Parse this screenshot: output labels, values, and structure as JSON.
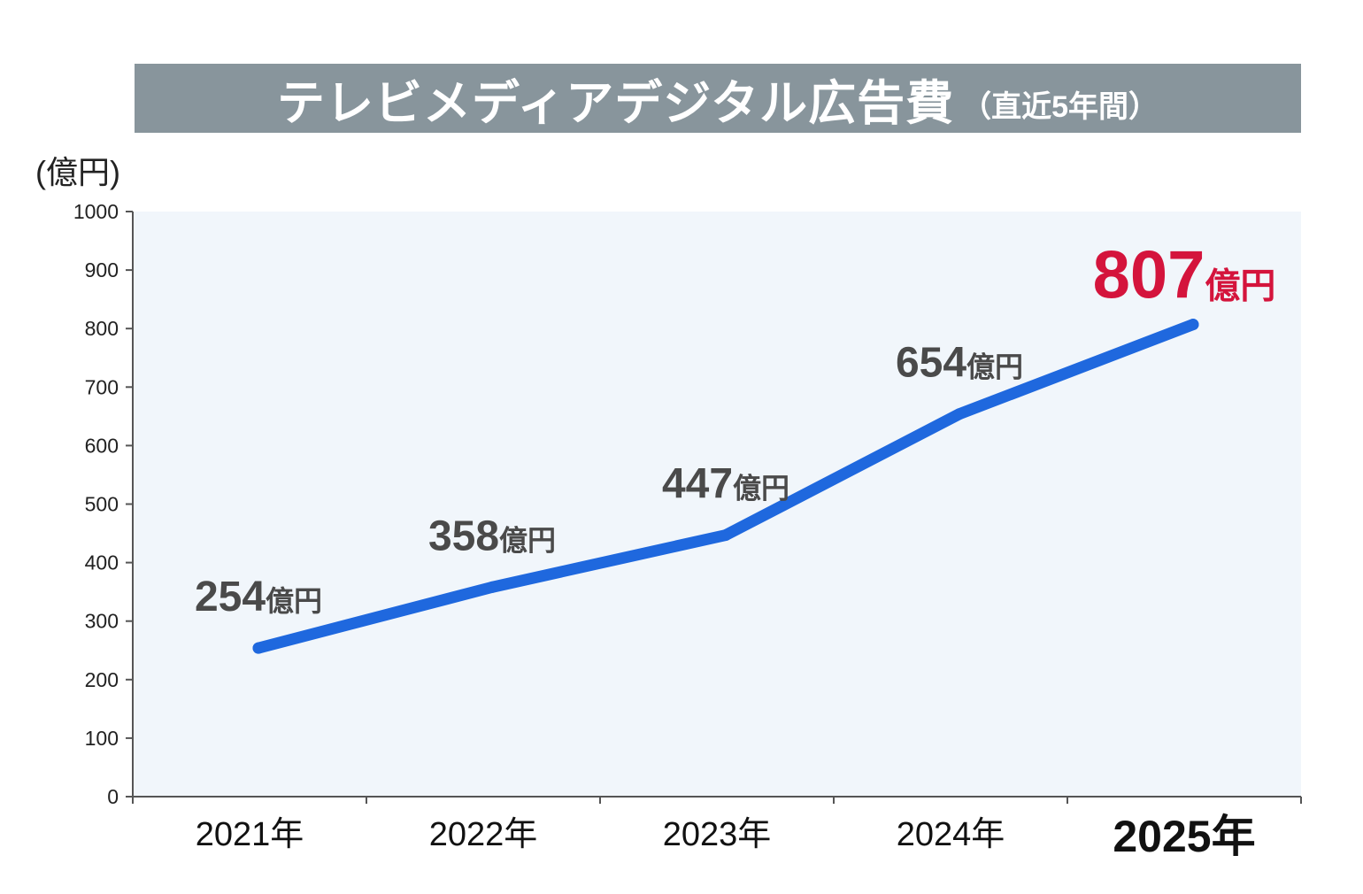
{
  "title": {
    "main": "テレビメディアデジタル広告費",
    "sub": "（直近5年間）"
  },
  "colors": {
    "title_bg": "#88959c",
    "plot_bg": "#f1f6fb",
    "line": "#1f68de",
    "highlight": "#d4143c",
    "label": "#4a4a4a"
  },
  "chart_data": {
    "type": "line",
    "unit": "(億円)",
    "categories": [
      "2021年",
      "2022年",
      "2023年",
      "2024年",
      "2025年"
    ],
    "values": [
      254,
      358,
      447,
      654,
      807
    ],
    "data_labels": [
      {
        "number": "254",
        "suffix": "億円"
      },
      {
        "number": "358",
        "suffix": "億円"
      },
      {
        "number": "447",
        "suffix": "億円"
      },
      {
        "number": "654",
        "suffix": "億円"
      },
      {
        "number": "807",
        "suffix": "億円"
      }
    ],
    "highlight_index": 4,
    "ylim": [
      0,
      1000
    ],
    "yticks": [
      "0",
      "100",
      "200",
      "300",
      "400",
      "500",
      "600",
      "700",
      "800",
      "900",
      "1000"
    ],
    "grid": false,
    "legend": "none"
  }
}
